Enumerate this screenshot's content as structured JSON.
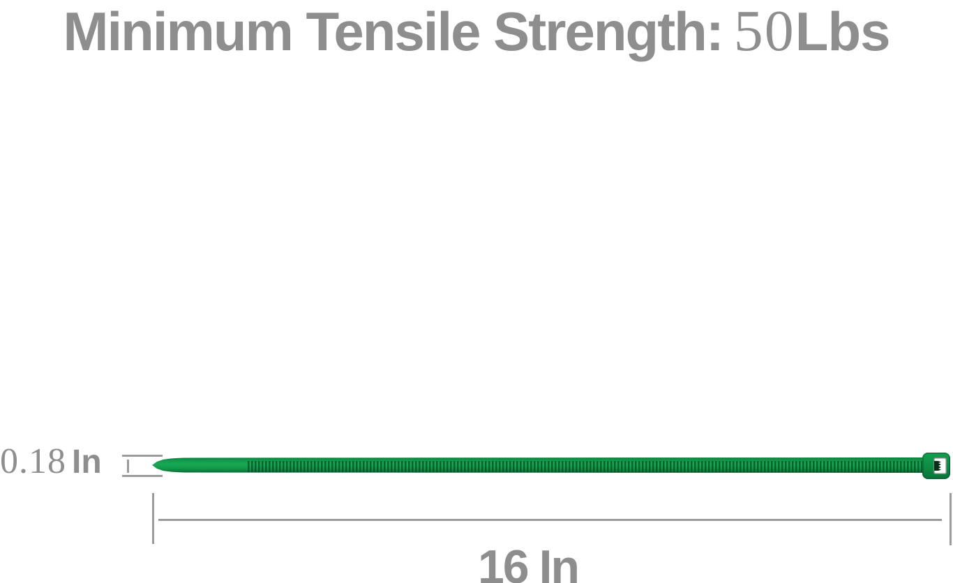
{
  "title": {
    "label": "Minimum Tensile Strength:",
    "value": "50",
    "unit": "Lbs"
  },
  "dimensions": {
    "width": {
      "value": "0.18",
      "unit": "In"
    },
    "length": {
      "value": "16",
      "unit": "In"
    }
  },
  "graphic": {
    "subject": "green-cable-zip-tie"
  },
  "colors": {
    "text_gray": "#8e8e8e",
    "measure_line_gray": "#9b9b9b",
    "tie_green": "#17a955",
    "tie_green_dark": "#0b713a",
    "tie_teeth_dark": "#04381a",
    "head_slot_white": "#fdfdfd",
    "pawl_dark": "#0a2f18",
    "background": "#ffffff"
  }
}
